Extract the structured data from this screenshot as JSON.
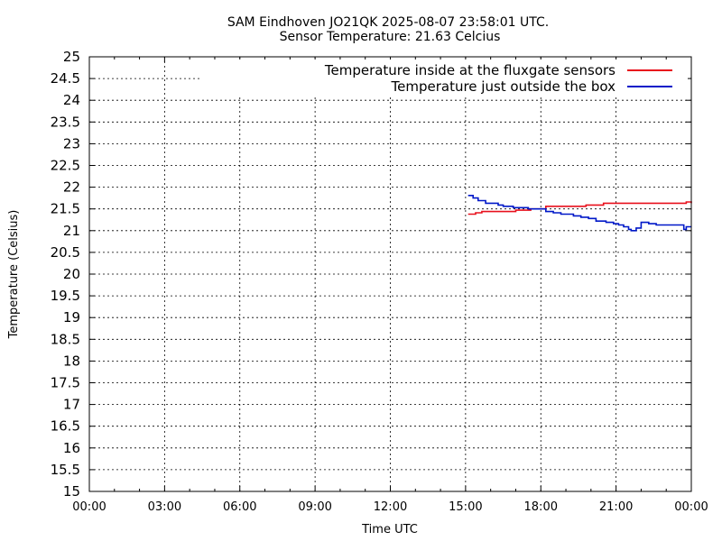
{
  "chart_data": {
    "type": "line",
    "title": "SAM Eindhoven JO21QK 2025-08-07 23:58:01 UTC.",
    "subtitle": "Sensor Temperature: 21.63 Celcius",
    "xlabel": "Time UTC",
    "ylabel": "Temperature (Celsius)",
    "xlim": [
      0,
      24
    ],
    "ylim": [
      15,
      25
    ],
    "x_ticks": [
      "00:00",
      "03:00",
      "06:00",
      "09:00",
      "12:00",
      "15:00",
      "18:00",
      "21:00",
      "00:00"
    ],
    "y_ticks": [
      "15",
      "15.5",
      "16",
      "16.5",
      "17",
      "17.5",
      "18",
      "18.5",
      "19",
      "19.5",
      "20",
      "20.5",
      "21",
      "21.5",
      "22",
      "22.5",
      "23",
      "23.5",
      "24",
      "24.5",
      "25"
    ],
    "grid": true,
    "legend_position": "top-right",
    "series": [
      {
        "name": "Temperature inside at the fluxgate sensors",
        "color": "#e8101c",
        "x": [
          15.1,
          15.4,
          15.6,
          15.65,
          15.7,
          16.0,
          16.5,
          16.9,
          17.0,
          17.3,
          17.6,
          18.0,
          18.2,
          18.5,
          19.0,
          19.5,
          19.8,
          20.0,
          20.2,
          20.4,
          20.5,
          20.8,
          21.0,
          21.5,
          22.0,
          22.5,
          23.0,
          23.5,
          23.8,
          24.0
        ],
        "y": [
          21.38,
          21.41,
          21.41,
          21.44,
          21.44,
          21.44,
          21.44,
          21.44,
          21.47,
          21.47,
          21.5,
          21.5,
          21.56,
          21.56,
          21.56,
          21.56,
          21.59,
          21.59,
          21.59,
          21.59,
          21.63,
          21.63,
          21.63,
          21.63,
          21.63,
          21.63,
          21.63,
          21.63,
          21.66,
          21.63
        ]
      },
      {
        "name": "Temperature just outside the box",
        "color": "#0018c8",
        "x": [
          15.1,
          15.3,
          15.5,
          15.8,
          16.0,
          16.3,
          16.5,
          16.9,
          17.2,
          17.5,
          17.8,
          18.0,
          18.2,
          18.5,
          18.8,
          19.0,
          19.3,
          19.6,
          19.9,
          20.2,
          20.6,
          20.9,
          21.1,
          21.3,
          21.5,
          21.6,
          21.8,
          22.0,
          22.3,
          22.6,
          23.0,
          23.3,
          23.5,
          23.7,
          23.8,
          24.0
        ],
        "y": [
          21.81,
          21.75,
          21.69,
          21.63,
          21.63,
          21.59,
          21.56,
          21.53,
          21.53,
          21.5,
          21.5,
          21.5,
          21.44,
          21.41,
          21.38,
          21.38,
          21.34,
          21.31,
          21.28,
          21.22,
          21.19,
          21.16,
          21.13,
          21.09,
          21.03,
          21.0,
          21.06,
          21.19,
          21.16,
          21.13,
          21.13,
          21.13,
          21.13,
          21.03,
          21.09,
          21.09
        ]
      }
    ]
  }
}
